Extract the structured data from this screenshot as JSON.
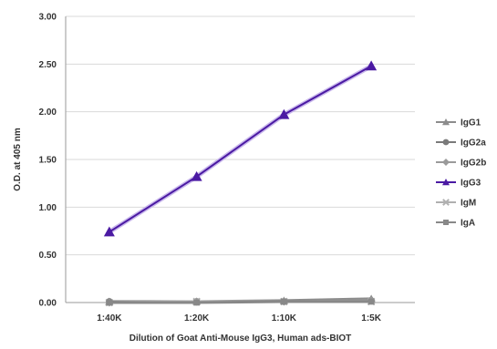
{
  "chart_data": {
    "type": "line",
    "title": "",
    "xlabel": "Dilution of Goat Anti-Mouse IgG3, Human ads-BIOT",
    "ylabel": "O.D. at 405 nm",
    "categories": [
      "1:40K",
      "1:20K",
      "1:10K",
      "1:5K"
    ],
    "ylim": [
      0,
      3
    ],
    "yticks": [
      "0.00",
      "0.50",
      "1.00",
      "1.50",
      "2.00",
      "2.50",
      "3.00"
    ],
    "yticks_values": [
      0,
      0.5,
      1,
      1.5,
      2,
      2.5,
      3
    ],
    "grid": true,
    "legend_position": "right",
    "series": [
      {
        "name": "IgG1",
        "values": [
          0.01,
          0.01,
          0.02,
          0.04
        ],
        "color": "#8c8c8c",
        "marker": "triangle"
      },
      {
        "name": "IgG2a",
        "values": [
          0.01,
          0.01,
          0.01,
          0.02
        ],
        "color": "#7a7a7a",
        "marker": "circle"
      },
      {
        "name": "IgG2b",
        "values": [
          0.0,
          0.01,
          0.01,
          0.02
        ],
        "color": "#9a9a9a",
        "marker": "diamond"
      },
      {
        "name": "IgG3",
        "values": [
          0.74,
          1.32,
          1.97,
          2.48
        ],
        "color": "#4b1aa3",
        "marker": "triangle"
      },
      {
        "name": "IgM",
        "values": [
          0.0,
          0.01,
          0.01,
          0.01
        ],
        "color": "#b0b0b0",
        "marker": "x"
      },
      {
        "name": "IgA",
        "values": [
          0.0,
          0.0,
          0.01,
          0.01
        ],
        "color": "#888888",
        "marker": "square"
      }
    ]
  }
}
